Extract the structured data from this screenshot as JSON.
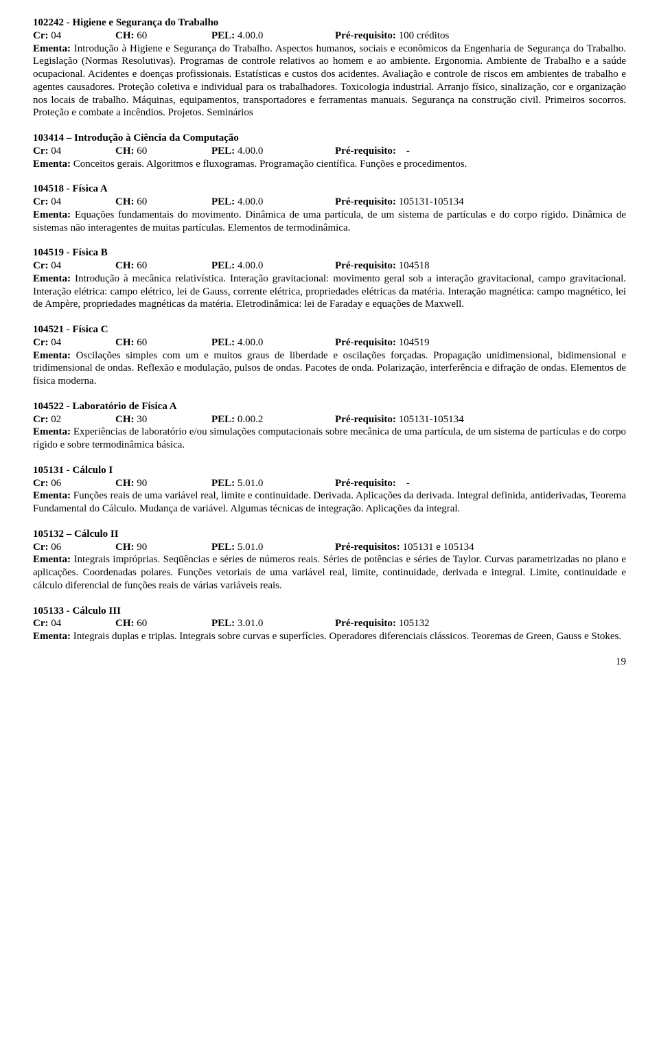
{
  "labels": {
    "cr": "Cr:",
    "ch": "CH:",
    "pel": "PEL:",
    "prereq": "Pré-requisito:",
    "prereqs": "Pré-requisitos:",
    "ementa": "Ementa:"
  },
  "page_number": "19",
  "courses": [
    {
      "title": "102242 - Higiene e Segurança do Trabalho",
      "cr": "04",
      "ch": "60",
      "pel": "4.00.0",
      "prereq_label": "Pré-requisito:",
      "prereq": "100 créditos",
      "ementa": "Introdução à Higiene e Segurança do Trabalho. Aspectos humanos, sociais e econômicos da Engenharia de Segurança do Trabalho. Legislação (Normas Resolutivas). Programas de controle relativos ao homem e ao ambiente. Ergonomia. Ambiente de Trabalho e a saúde ocupacional. Acidentes e doenças profissionais. Estatísticas e custos dos acidentes. Avaliação e controle de riscos em ambientes de trabalho e agentes causadores. Proteção coletiva e individual para os trabalhadores. Toxicologia industrial. Arranjo físico, sinalização, cor e organização nos locais de trabalho. Máquinas, equipamentos, transportadores e ferramentas manuais. Segurança na construção civil. Primeiros socorros. Proteção e combate a incêndios. Projetos. Seminários"
    },
    {
      "title": "103414 – Introdução à Ciência da Computação",
      "cr": "04",
      "ch": "60",
      "pel": "4.00.0",
      "prereq_label": "Pré-requisito:",
      "prereq": "   -",
      "ementa": "Conceitos gerais. Algoritmos e fluxogramas. Programação científica. Funções e procedimentos."
    },
    {
      "title": "104518 - Física A",
      "cr": "04",
      "ch": "60",
      "pel": "4.00.0",
      "prereq_label": "Pré-requisito:",
      "prereq": "105131-105134",
      "ementa": "Equações fundamentais do movimento. Dinâmica de uma partícula, de um sistema de partículas e do corpo rígido. Dinâmica de sistemas não interagentes de muitas partículas. Elementos de termodinâmica."
    },
    {
      "title": "104519 - Física B",
      "cr": "04",
      "ch": "60",
      "pel": "4.00.0",
      "prereq_label": "Pré-requisito:",
      "prereq": "104518",
      "ementa": "Introdução à mecânica relativística. Interação gravitacional: movimento geral sob a interação gravitacional, campo gravitacional. Interação elétrica: campo elétrico, lei de Gauss, corrente elétrica, propriedades elétricas da matéria. Interação magnética: campo magnético, lei de Ampère, propriedades magnéticas da matéria. Eletrodinâmica: lei de Faraday e equações de Maxwell."
    },
    {
      "title": "104521 - Física C",
      "cr": "04",
      "ch": "60",
      "pel": "4.00.0",
      "prereq_label": "Pré-requisito:",
      "prereq": "104519",
      "ementa": "Oscilações simples com um e muitos graus de liberdade e oscilações forçadas. Propagação unidimensional, bidimensional e tridimensional de ondas. Reflexão e modulação, pulsos de ondas. Pacotes de onda. Polarização, interferência e difração de ondas. Elementos de física moderna."
    },
    {
      "title": "104522 - Laboratório de Física A",
      "cr": "02",
      "ch": "30",
      "pel": "0.00.2",
      "prereq_label": "Pré-requisito:",
      "prereq": "105131-105134",
      "ementa": "Experiências de laboratório e/ou simulações computacionais sobre mecânica de uma partícula, de um sistema de partículas e do corpo rígido e sobre termodinâmica básica."
    },
    {
      "title": "105131 - Cálculo I",
      "cr": "06",
      "ch": "90",
      "pel": "5.01.0",
      "prereq_label": "Pré-requisito:",
      "prereq": "   -",
      "ementa": "Funções reais de uma variável real, limite e continuidade. Derivada. Aplicações da derivada. Integral definida, antiderivadas, Teorema Fundamental do Cálculo. Mudança de variável. Algumas técnicas de integração. Aplicações da integral."
    },
    {
      "title": "105132 – Cálculo II",
      "cr": "06",
      "ch": "90",
      "pel": "5.01.0",
      "prereq_label": "Pré-requisitos:",
      "prereq": "105131 e 105134",
      "ementa": "Integrais impróprias. Seqüências e séries de números reais. Séries de potências e séries de Taylor. Curvas parametrizadas no plano e aplicações. Coordenadas polares. Funções vetoriais de uma variável real, limite, continuidade, derivada e integral. Limite, continuidade e cálculo diferencial de funções reais de várias variáveis reais."
    },
    {
      "title": "105133 - Cálculo III",
      "cr": "04",
      "ch": "60",
      "pel": "3.01.0",
      "prereq_label": "Pré-requisito:",
      "prereq": "105132",
      "ementa": "Integrais duplas e triplas. Integrais sobre curvas e superfícies. Operadores diferenciais clássicos. Teoremas de Green, Gauss e Stokes."
    }
  ]
}
